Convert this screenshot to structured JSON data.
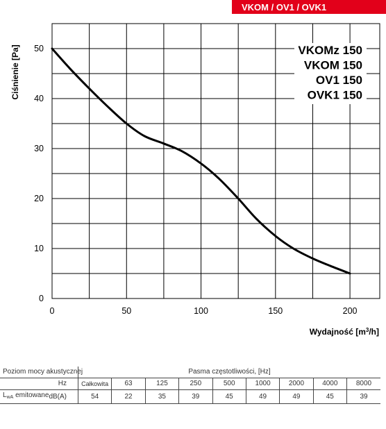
{
  "header": {
    "title": "VKOM / OV1 / OVK1"
  },
  "colors": {
    "brand": "#e2001a",
    "curve": "#000000",
    "grid": "#000000"
  },
  "chart_data": {
    "type": "line",
    "xlabel": "Wydajność [m³/h]",
    "ylabel": "Ciśnienie [Pa]",
    "xlim": [
      0,
      220
    ],
    "ylim": [
      0,
      55
    ],
    "x_ticks": [
      0,
      50,
      100,
      150,
      200
    ],
    "y_ticks": [
      0,
      10,
      20,
      30,
      40,
      50
    ],
    "grid": true,
    "legend_position": "top-right",
    "legend_entries": [
      "VKOMz 150",
      "VKOM 150",
      "OV1 150",
      "OVK1 150"
    ],
    "series": [
      {
        "x": [
          0,
          12,
          25,
          37,
          50,
          62,
          75,
          87,
          100,
          112,
          125,
          137,
          150,
          162,
          175,
          187,
          200
        ],
        "y": [
          50,
          46,
          42,
          38.5,
          35,
          32.5,
          31,
          29.5,
          27,
          24,
          20,
          16,
          12.5,
          10,
          8,
          6.5,
          5
        ]
      }
    ]
  },
  "acoustic": {
    "title_label": "Poziom mocy akustycznej",
    "bands_title": "Pasma częstotliwości, [Hz]",
    "hz_label": "Hz",
    "columns": [
      "Całkowita",
      "63",
      "125",
      "250",
      "500",
      "1000",
      "2000",
      "4000",
      "8000"
    ],
    "row_label_main": "L",
    "row_label_sub": "wA",
    "row_label_rest": " emitowane",
    "row_unit": "dB(A)",
    "row_values": [
      "54",
      "22",
      "35",
      "39",
      "45",
      "49",
      "49",
      "45",
      "39"
    ]
  }
}
